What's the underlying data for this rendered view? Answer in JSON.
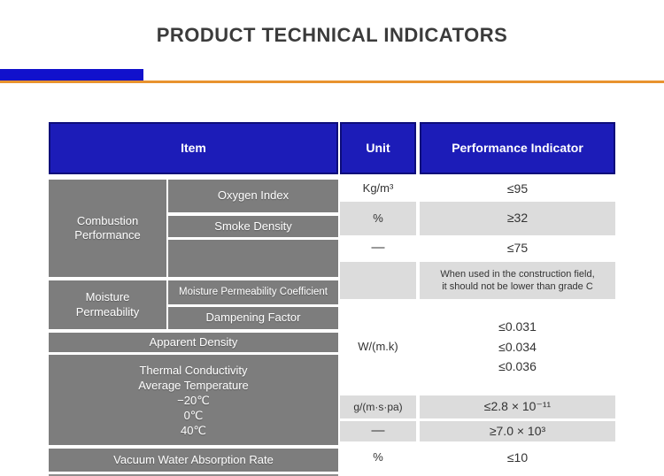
{
  "title": "PRODUCT TECHNICAL INDICATORS",
  "colors": {
    "header_blue": "#1c1cb8",
    "accent_blue_bar": "#1111cc",
    "accent_orange_bar": "#e8932f",
    "item_block_gray": "#7d7d7d",
    "row_gray": "#dcdcdc"
  },
  "table": {
    "header": {
      "item": "Item",
      "unit": "Unit",
      "indicator": "Performance Indicator"
    },
    "items": {
      "combustion": {
        "line1": "Combustion",
        "line2": "Performance"
      },
      "moisture": {
        "line1": "Moisture",
        "line2": "Permeability"
      },
      "oxygen_index": "Oxygen Index",
      "smoke_density": "Smoke Density",
      "moisture_permeability_coefficient": "Moisture Permeability Coefficient",
      "dampening_factor": "Dampening Factor",
      "apparent_density": "Apparent Density",
      "thermal": {
        "line1": "Thermal Conductivity",
        "line2": "Average Temperature",
        "line3": "−20℃",
        "line4": "0℃",
        "line5": "40℃"
      },
      "vacuum_water_absorption_rate": "Vacuum Water Absorption Rate"
    },
    "units": {
      "row1": "Kg/m³",
      "row2": "%",
      "row3": "—",
      "row5": "W/(m.k)",
      "row6": "g/(m·s·pa)",
      "row7": "—",
      "row8": "%"
    },
    "indicators": {
      "row1": "≤95",
      "row2": "≥32",
      "row3": "≤75",
      "grade_note": {
        "line1": "When used in the construction field,",
        "line2": "it should not be lower than grade C"
      },
      "thermal1": "≤0.031",
      "thermal2": "≤0.034",
      "thermal3": "≤0.036",
      "row6": "≤2.8 × 10⁻¹¹",
      "row7": "≥7.0 × 10³",
      "row8": "≤10"
    }
  }
}
